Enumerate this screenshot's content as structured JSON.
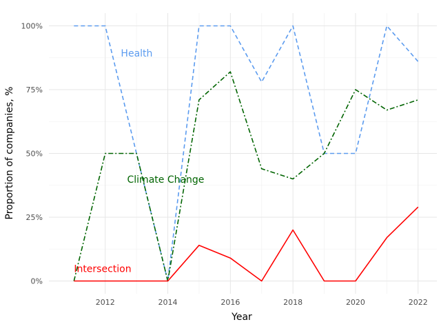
{
  "chart_data": {
    "type": "line",
    "title": "",
    "xlabel": "Year",
    "ylabel": "Proportion of companies, %",
    "x": [
      2011,
      2012,
      2013,
      2014,
      2015,
      2016,
      2017,
      2018,
      2019,
      2020,
      2021,
      2022
    ],
    "xlim": [
      2010.2,
      2022.6
    ],
    "ylim": [
      -0.05,
      1.05
    ],
    "x_ticks": [
      2012,
      2014,
      2016,
      2018,
      2020,
      2022
    ],
    "x_tick_labels": [
      "2012",
      "2014",
      "2016",
      "2018",
      "2020",
      "2022"
    ],
    "y_ticks": [
      0,
      0.25,
      0.5,
      0.75,
      1.0
    ],
    "y_tick_labels": [
      "0%",
      "25%",
      "50%",
      "75%",
      "100%"
    ],
    "grid": true,
    "legend": "none (direct labels)",
    "series": [
      {
        "name": "Health",
        "color": "#5b9bef",
        "line_style": "dashed",
        "values": [
          1.0,
          1.0,
          0.5,
          0.0,
          1.0,
          1.0,
          0.78,
          1.0,
          0.5,
          0.5,
          1.0,
          0.86
        ]
      },
      {
        "name": "Climate Change",
        "color": "#006400",
        "line_style": "dashdot",
        "values": [
          0.0,
          0.5,
          0.5,
          0.0,
          0.71,
          0.82,
          0.44,
          0.4,
          0.5,
          0.75,
          0.67,
          0.71
        ]
      },
      {
        "name": "Intersection",
        "color": "#ff0000",
        "line_style": "solid",
        "values": [
          0.0,
          0.0,
          0.0,
          0.0,
          0.14,
          0.09,
          0.0,
          0.2,
          0.0,
          0.0,
          0.17,
          0.29
        ]
      }
    ]
  }
}
